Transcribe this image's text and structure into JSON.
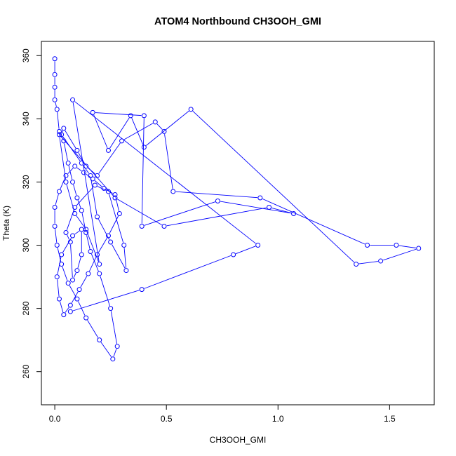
{
  "chart_data": {
    "type": "line",
    "title": "ATOM4 Northbound CH3OOH_GMI",
    "xlabel": "CH3OOH_GMI",
    "ylabel": "Theta (K)",
    "xlim": [
      -0.06,
      1.7
    ],
    "ylim": [
      249.5,
      364.5
    ],
    "xticks": [
      0.0,
      0.5,
      1.0,
      1.5
    ],
    "xtick_labels": [
      "0.0",
      "0.5",
      "1.0",
      "1.5"
    ],
    "yticks": [
      260,
      280,
      300,
      320,
      340,
      360
    ],
    "ytick_labels": [
      "260",
      "280",
      "300",
      "320",
      "340",
      "360"
    ],
    "grid": false,
    "legend": "none",
    "series_color": "#0000ff",
    "marker": "open-circle",
    "series": [
      {
        "x": [
          0.0,
          0.0,
          0.0,
          0.0,
          0.01,
          0.02,
          0.04,
          0.06,
          0.08,
          0.1,
          0.12,
          0.14,
          0.16,
          0.2,
          0.25,
          0.28,
          0.26,
          0.2,
          0.14,
          0.1,
          0.06,
          0.03,
          0.01,
          0.0,
          0.0,
          0.02,
          0.05,
          0.09,
          0.13,
          0.17,
          0.22,
          0.27,
          0.29,
          0.24,
          0.19,
          0.15,
          0.11,
          0.07,
          0.04,
          0.02,
          0.01,
          0.03,
          0.08,
          0.12,
          0.12,
          0.1,
          0.08,
          0.07,
          0.05,
          0.09,
          0.18,
          0.24,
          0.31,
          0.32,
          0.25,
          0.19,
          0.16,
          0.12,
          0.03,
          0.04,
          0.1,
          0.14,
          0.19,
          0.3,
          0.45,
          0.49,
          0.53,
          0.92,
          1.4,
          1.53,
          1.63,
          1.46,
          1.35,
          0.61,
          0.4,
          0.34,
          0.24,
          0.17,
          0.4,
          0.39,
          0.73,
          1.07,
          0.96,
          0.49,
          0.27,
          0.02,
          0.05,
          0.09,
          0.14,
          0.2,
          0.08,
          0.91,
          0.8,
          0.39,
          0.07
        ],
        "y": [
          359,
          354,
          350,
          346,
          343,
          336,
          333,
          326,
          320,
          315,
          311,
          304,
          298,
          291,
          280,
          268,
          264,
          270,
          277,
          283,
          288,
          294,
          300,
          306,
          312,
          317,
          322,
          325,
          323,
          321,
          318,
          316,
          310,
          303,
          297,
          291,
          286,
          281,
          278,
          283,
          290,
          297,
          303,
          305,
          297,
          292,
          289,
          301,
          304,
          312,
          319,
          317,
          300,
          292,
          301,
          309,
          322,
          326,
          335,
          337,
          330,
          325,
          322,
          333,
          339,
          336,
          317,
          315,
          300,
          300,
          299,
          295,
          294,
          343,
          331,
          341,
          330,
          342,
          341,
          306,
          314,
          310,
          312,
          306,
          315,
          335,
          320,
          310,
          305,
          294,
          346,
          300,
          297,
          286,
          279
        ]
      }
    ]
  }
}
